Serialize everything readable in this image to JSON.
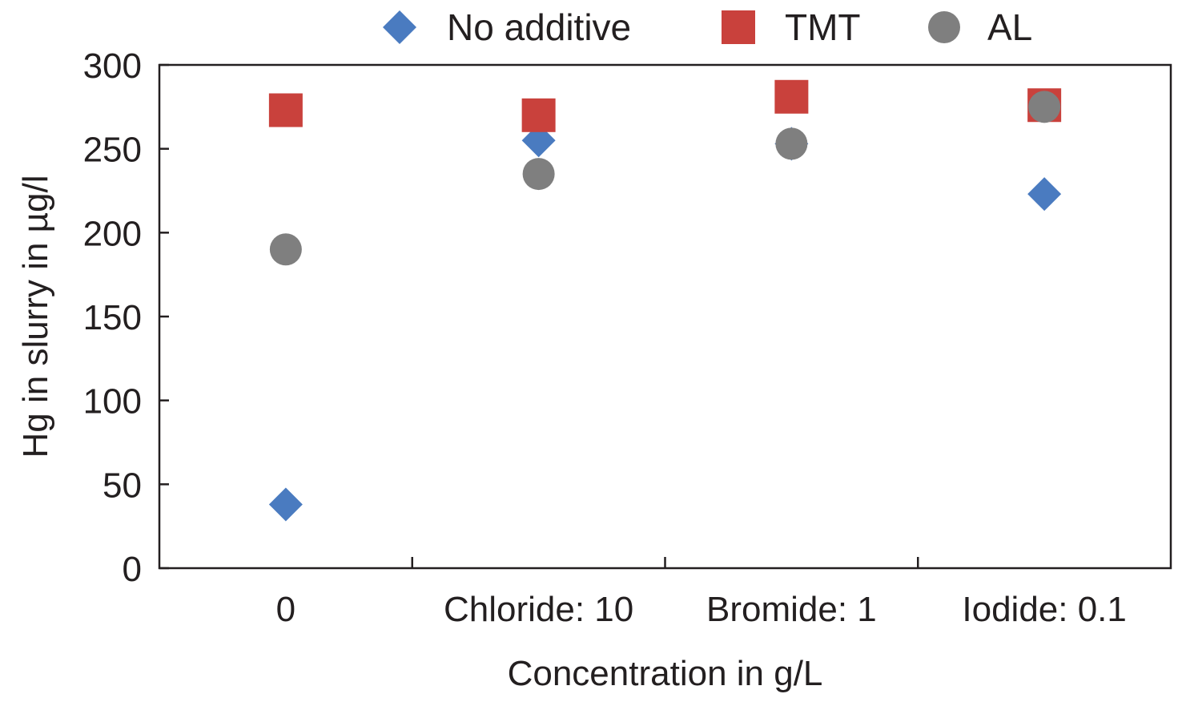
{
  "chart_data": {
    "type": "scatter",
    "categories": [
      "0",
      "Chloride: 10",
      "Bromide: 1",
      "Iodide: 0.1"
    ],
    "xlabel": "Concentration in g/L",
    "ylabel": "Hg in slurry in µg/l",
    "ylim": [
      0,
      300
    ],
    "yticks": [
      0,
      50,
      100,
      150,
      200,
      250,
      300
    ],
    "grid": false,
    "legend_position": "top",
    "series": [
      {
        "name": "No additive",
        "marker": "diamond",
        "color": "#4a7bc0",
        "values": [
          38,
          255,
          253,
          223
        ]
      },
      {
        "name": "TMT",
        "marker": "square",
        "color": "#c9413c",
        "values": [
          273,
          270,
          281,
          276
        ]
      },
      {
        "name": "AL",
        "marker": "circle",
        "color": "#7f7f7f",
        "values": [
          190,
          235,
          253,
          275
        ]
      }
    ]
  }
}
